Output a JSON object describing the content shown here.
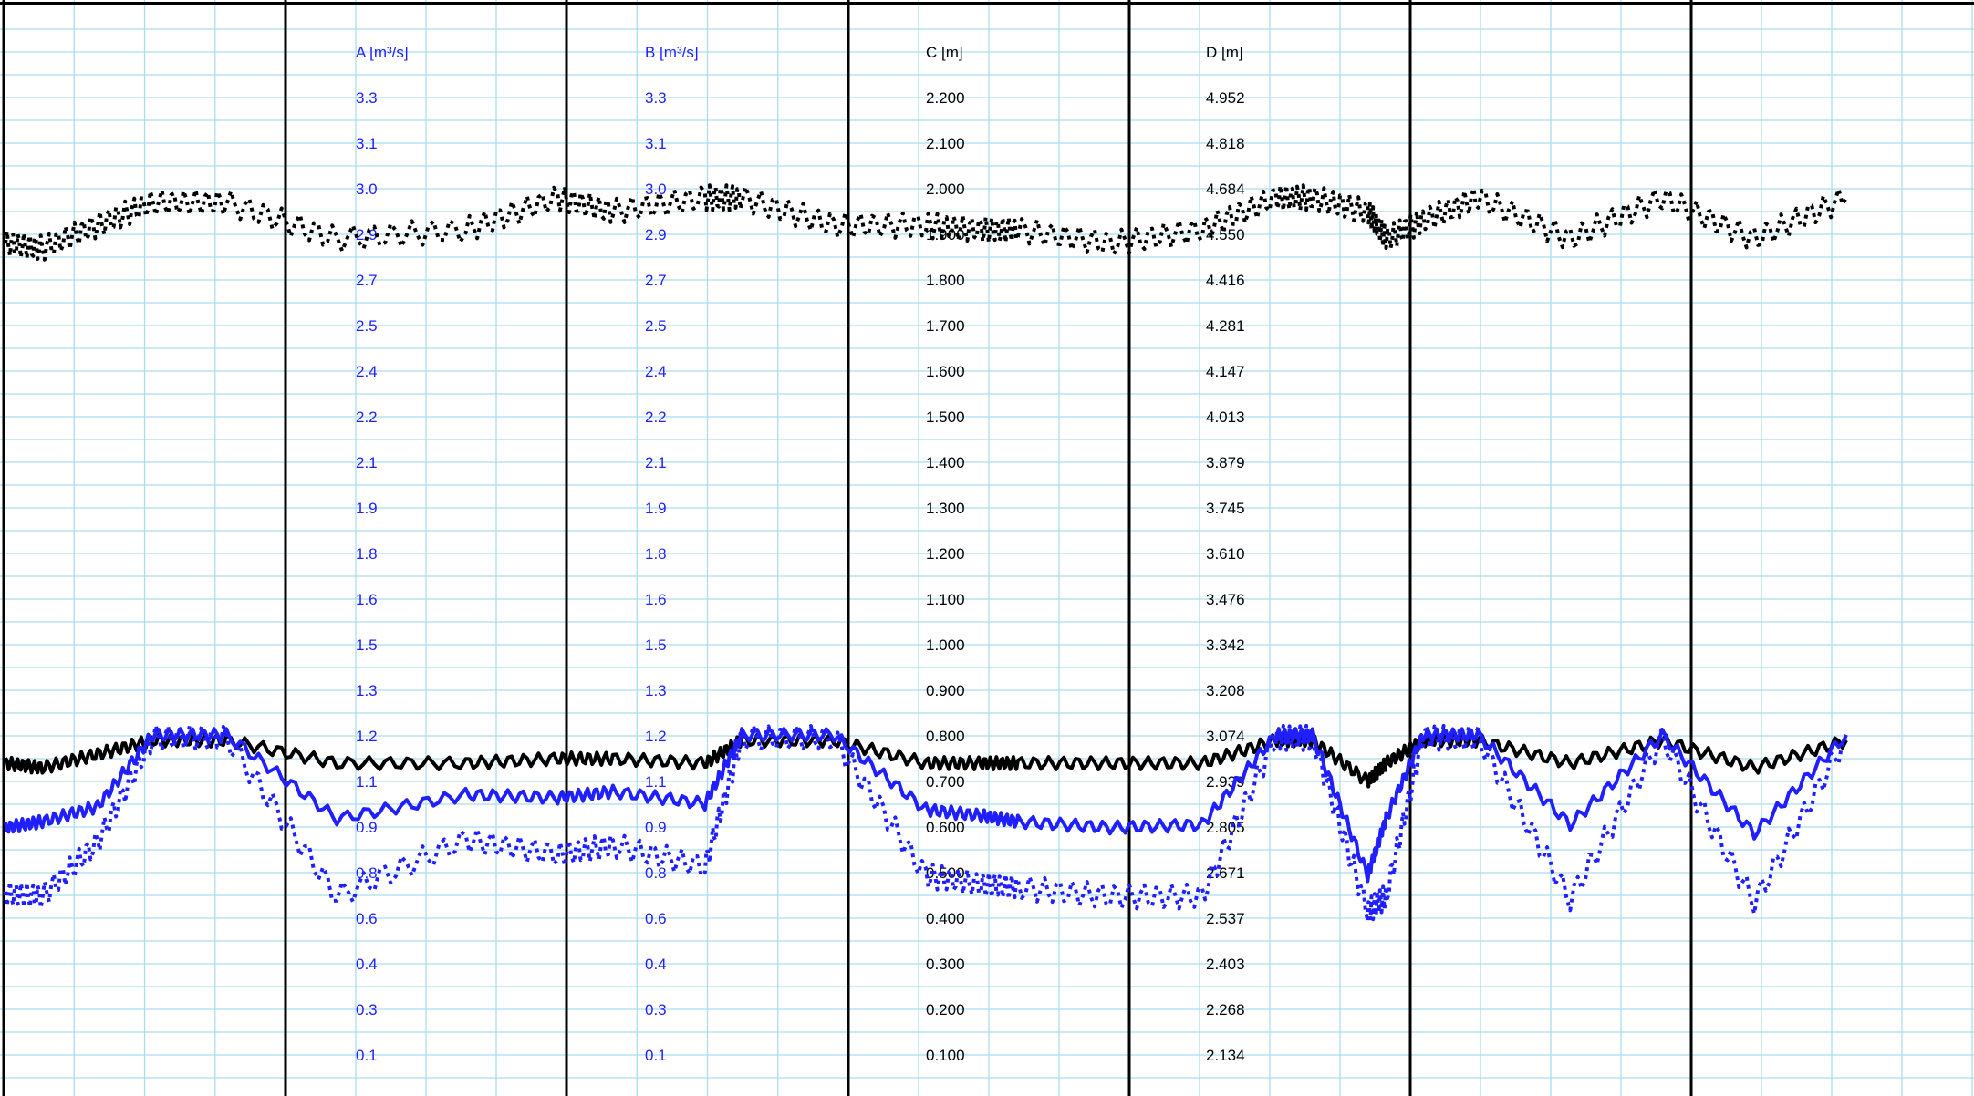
{
  "chart_data": {
    "type": "line",
    "grid": true,
    "axes": [
      {
        "title": "A [m³/s]",
        "color": "#1f1fff",
        "ticks": [
          "3.3",
          "3.1",
          "3.0",
          "2.9",
          "2.7",
          "2.5",
          "2.4",
          "2.2",
          "2.1",
          "1.9",
          "1.8",
          "1.6",
          "1.5",
          "1.3",
          "1.2",
          "1.1",
          "0.9",
          "0.8",
          "0.6",
          "0.4",
          "0.3",
          "0.1"
        ],
        "range": [
          0,
          3.43
        ]
      },
      {
        "title": "B [m³/s]",
        "color": "#1f1fff",
        "ticks": [
          "3.3",
          "3.1",
          "3.0",
          "2.9",
          "2.7",
          "2.5",
          "2.4",
          "2.2",
          "2.1",
          "1.9",
          "1.8",
          "1.6",
          "1.5",
          "1.3",
          "1.2",
          "1.1",
          "0.9",
          "0.8",
          "0.6",
          "0.4",
          "0.3",
          "0.1"
        ],
        "range": [
          0,
          3.43
        ]
      },
      {
        "title": "C [m]",
        "color": "#000000",
        "ticks": [
          "2.200",
          "2.100",
          "2.000",
          "1.900",
          "1.800",
          "1.700",
          "1.600",
          "1.500",
          "1.400",
          "1.300",
          "1.200",
          "1.100",
          "1.000",
          "0.900",
          "0.800",
          "0.700",
          "0.600",
          "0.500",
          "0.400",
          "0.300",
          "0.200",
          "0.100"
        ],
        "range": [
          0,
          2.3
        ]
      },
      {
        "title": "D [m]",
        "color": "#000000",
        "ticks": [
          "4.952",
          "4.818",
          "4.684",
          "4.550",
          "4.416",
          "4.281",
          "4.147",
          "4.013",
          "3.879",
          "3.745",
          "3.610",
          "3.476",
          "3.342",
          "3.208",
          "3.074",
          "2.939",
          "2.805",
          "2.671",
          "2.537",
          "2.403",
          "2.268",
          "2.134"
        ],
        "range": [
          2.0,
          5.086
        ]
      }
    ],
    "series": [
      {
        "axis": "C",
        "color": "#000000",
        "style": "dotted",
        "x": [
          0,
          2,
          5,
          8,
          12,
          18,
          25,
          30,
          33,
          38,
          40,
          45,
          50,
          53,
          55,
          60,
          65,
          69,
          71,
          74,
          75,
          77,
          80,
          85,
          90,
          95,
          100
        ],
        "y": [
          1.88,
          1.87,
          1.92,
          1.97,
          1.97,
          1.89,
          1.91,
          1.98,
          1.95,
          1.98,
          1.98,
          1.92,
          1.92,
          1.91,
          1.91,
          1.88,
          1.91,
          1.98,
          1.98,
          1.95,
          1.89,
          1.93,
          1.98,
          1.89,
          1.98,
          1.89,
          1.98
        ]
      },
      {
        "axis": "C",
        "color": "#000000",
        "style": "solid",
        "x": [
          0,
          2,
          5,
          8,
          12,
          18,
          25,
          30,
          33,
          38,
          40,
          45,
          50,
          53,
          55,
          60,
          65,
          69,
          71,
          74,
          75,
          77,
          80,
          85,
          90,
          95,
          100
        ],
        "y": [
          0.74,
          0.73,
          0.76,
          0.79,
          0.79,
          0.74,
          0.74,
          0.75,
          0.75,
          0.74,
          0.79,
          0.79,
          0.74,
          0.74,
          0.74,
          0.74,
          0.74,
          0.79,
          0.79,
          0.7,
          0.74,
          0.79,
          0.79,
          0.74,
          0.79,
          0.73,
          0.79
        ]
      },
      {
        "axis": "A",
        "color": "#1f1fff",
        "style": "solid",
        "x": [
          0,
          2,
          5,
          8,
          12,
          18,
          25,
          30,
          33,
          38,
          40,
          45,
          50,
          53,
          55,
          60,
          65,
          69,
          71,
          74,
          75,
          77,
          80,
          85,
          90,
          95,
          100
        ],
        "y": [
          0.86,
          0.88,
          0.93,
          1.17,
          1.17,
          0.89,
          0.97,
          0.96,
          0.98,
          0.94,
          1.17,
          1.17,
          0.92,
          0.9,
          0.88,
          0.86,
          0.87,
          1.17,
          1.17,
          0.7,
          0.89,
          1.17,
          1.17,
          0.87,
          1.17,
          0.84,
          1.17
        ]
      },
      {
        "axis": "B",
        "color": "#1f1fff",
        "style": "dotted",
        "x": [
          0,
          2,
          5,
          8,
          12,
          18,
          25,
          30,
          33,
          38,
          40,
          45,
          50,
          53,
          55,
          60,
          65,
          69,
          71,
          74,
          75,
          77,
          80,
          85,
          90,
          95,
          100
        ],
        "y": [
          0.64,
          0.63,
          0.81,
          1.16,
          1.16,
          0.63,
          0.82,
          0.77,
          0.8,
          0.73,
          1.16,
          1.16,
          0.7,
          0.67,
          0.66,
          0.63,
          0.63,
          1.16,
          1.16,
          0.58,
          0.63,
          1.16,
          1.16,
          0.62,
          1.16,
          0.61,
          1.16
        ]
      }
    ]
  }
}
